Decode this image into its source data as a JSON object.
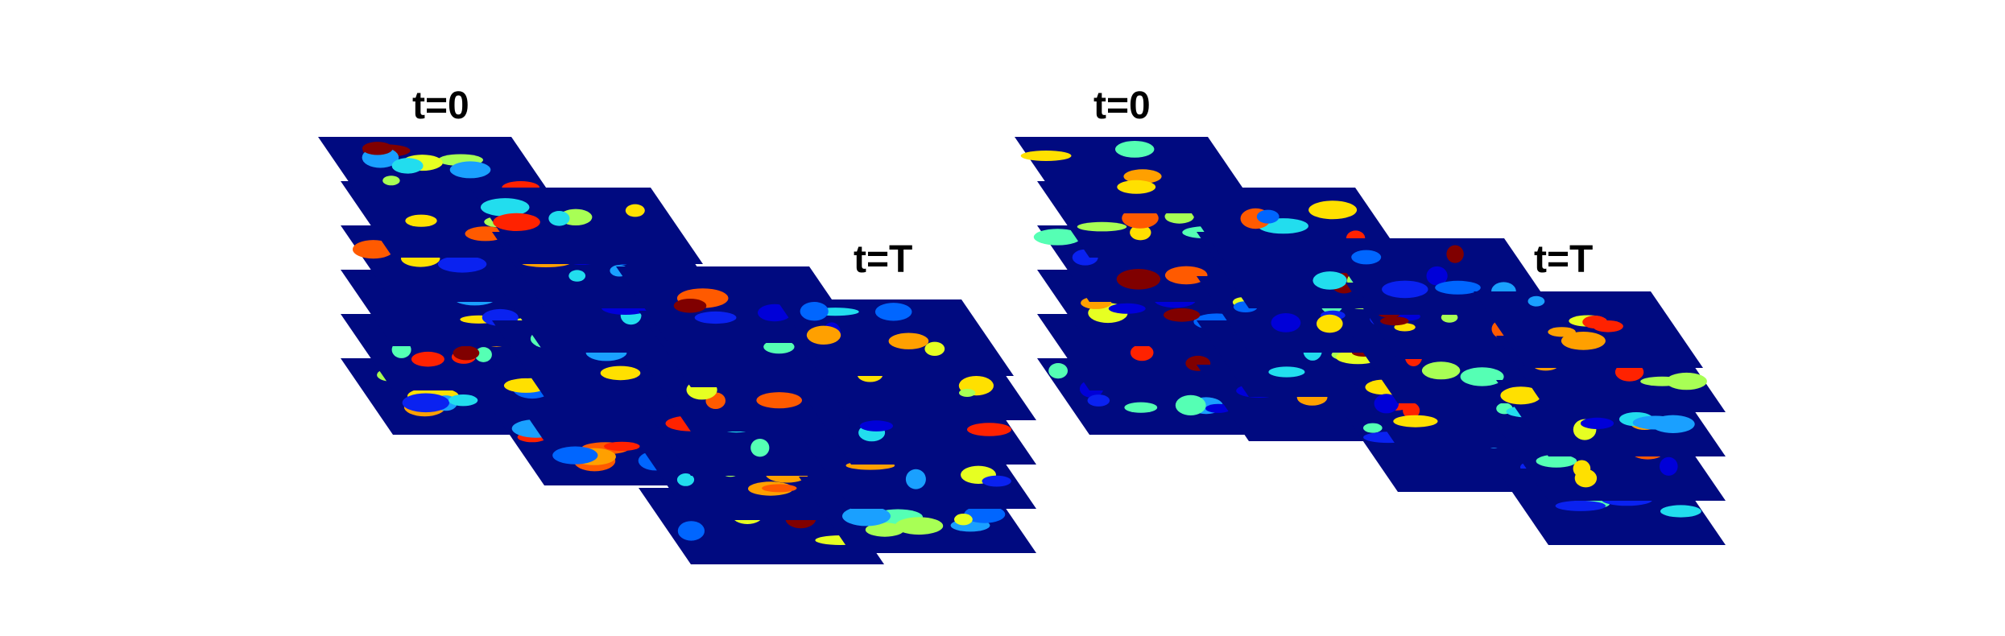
{
  "panels": [
    {
      "start_label": "t=0",
      "end_label": "t=T"
    },
    {
      "start_label": "t=0",
      "end_label": "t=T"
    }
  ],
  "colors": {
    "background": "#ffffff",
    "slice": "#000a80",
    "blobs": [
      "#0000d8",
      "#0a22f0",
      "#0066ff",
      "#1aa0ff",
      "#22ddee",
      "#55ffb4",
      "#a8ff55",
      "#e6ff22",
      "#ffe000",
      "#ffa000",
      "#ff5a00",
      "#ff2200",
      "#800000"
    ]
  }
}
